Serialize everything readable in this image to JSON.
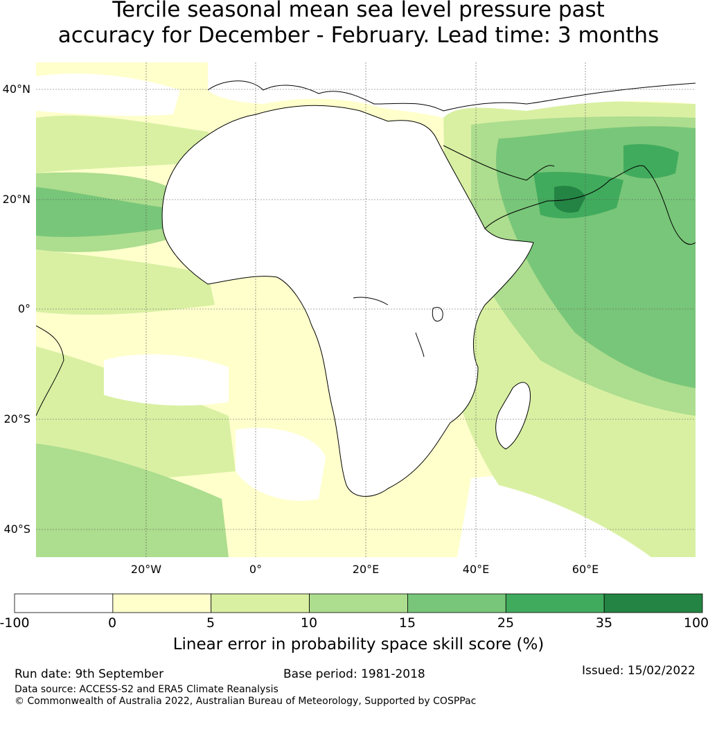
{
  "title": {
    "line1": "Tercile seasonal mean sea level pressure past",
    "line2": "accuracy for December - February. Lead time: 3 months"
  },
  "map": {
    "lat_labels": [
      "40°N",
      "20°N",
      "0°",
      "20°S",
      "40°S"
    ],
    "lon_labels": [
      "20°W",
      "0°",
      "20°E",
      "40°E",
      "60°E"
    ],
    "extent": {
      "lon_min": -40,
      "lon_max": 80,
      "lat_min": -45,
      "lat_max": 45
    },
    "gridlines": true
  },
  "colorbar": {
    "ticks": [
      "-100",
      "0",
      "5",
      "10",
      "15",
      "25",
      "35",
      "100"
    ],
    "colors": [
      "#ffffff",
      "#ffffcc",
      "#d9f0a3",
      "#addd8e",
      "#78c679",
      "#41ab5d",
      "#238443"
    ],
    "label": "Linear error in probability space skill score (%)"
  },
  "footer": {
    "run_date": "Run date: 9th September",
    "base_period": "Base period: 1981-2018",
    "issued": "Issued: 15/02/2022",
    "data_source": "Data source: ACCESS-S2 and ERA5 Climate Reanalysis",
    "copyright": "© Commonwealth of Australia 2022, Australian Bureau of Meteorology, Supported by COSPPac"
  }
}
